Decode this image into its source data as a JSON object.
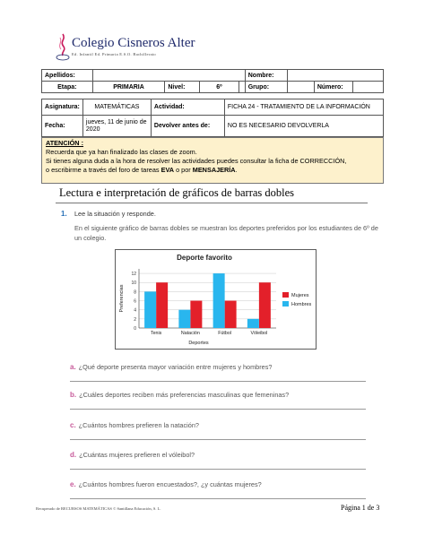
{
  "header": {
    "school_name": "Colegio Cisneros Alter",
    "school_levels": "Ed. Infantil   Ed. Primaria   E.S.O.   Bachillerato"
  },
  "info_table": {
    "row1": {
      "apellidos_label": "Apellidos:",
      "apellidos_value": "",
      "nombre_label": "Nombre:",
      "nombre_value": ""
    },
    "row2": {
      "etapa_label": "Etapa:",
      "etapa_value": "PRIMARIA",
      "nivel_label": "Nivel:",
      "nivel_value": "6º",
      "grupo_label": "Grupo:",
      "grupo_value": "",
      "numero_label": "Número:",
      "numero_value": ""
    },
    "row3": {
      "asignatura_label": "Asignatura:",
      "asignatura_value": "MATEMÁTICAS",
      "actividad_label": "Actividad:",
      "actividad_value": "FICHA 24 - TRATAMIENTO DE LA INFORMACIÓN"
    },
    "row4": {
      "fecha_label": "Fecha:",
      "fecha_value": "jueves, 11 de junio de 2020",
      "devolver_label": "Devolver antes de:",
      "devolver_value": "NO ES NECESARIO DEVOLVERLA"
    }
  },
  "attention": {
    "heading": "ATENCIÓN :",
    "line1": "Recuerda que ya han finalizado las clases de zoom.",
    "line2": "Si tienes alguna duda a la hora de resolver las actividades puedes consultar la ficha de CORRECCIÓN,",
    "line3_a": "o escribirme a través del foro de tareas ",
    "line3_b": "EVA",
    "line3_c": " o por ",
    "line3_d": "MENSAJERÍA",
    "line3_e": "."
  },
  "section_title": "Lectura e interpretación de gráficos de barras dobles",
  "question1": {
    "number": "1.",
    "instruction": "Lee la situación y responde.",
    "intro": "En el siguiente gráfico de barras dobles se muestran los deportes preferidos por los estudiantes de 6º de un colegio."
  },
  "chart_data": {
    "type": "bar",
    "title": "Deporte favorito",
    "xlabel": "Deportes",
    "ylabel": "Preferencias",
    "categories": [
      "Tenis",
      "Natación",
      "Fútbol",
      "Vóleibol"
    ],
    "series": [
      {
        "name": "Mujeres",
        "values": [
          10,
          6,
          6,
          10
        ],
        "color": "#e3202a"
      },
      {
        "name": "Hombres",
        "values": [
          8,
          4,
          12,
          2
        ],
        "color": "#29b6ee"
      }
    ],
    "yticks": [
      0,
      2,
      4,
      6,
      8,
      10,
      12
    ],
    "ylim": [
      0,
      13
    ],
    "grid": true,
    "legend": "right"
  },
  "sub_questions": [
    {
      "letter": "a.",
      "text": "¿Qué deporte presenta mayor variación entre mujeres y hombres?"
    },
    {
      "letter": "b.",
      "text": "¿Cuáles deportes reciben más preferencias masculinas que femeninas?"
    },
    {
      "letter": "c.",
      "text": "¿Cuántos hombres prefieren la natación?"
    },
    {
      "letter": "d.",
      "text": "¿Cuántas mujeres prefieren el vóleibol?"
    },
    {
      "letter": "e.",
      "text": "¿Cuántos hombres fueron encuestados?, ¿y cuántas mujeres?"
    }
  ],
  "footer": {
    "left": "Recuperado de RECURSOS MATEMÁTICAS © Santillana Educación, S. L.",
    "right": "Página 1 de 3"
  },
  "colors": {
    "accent_blue": "#2a72b8",
    "accent_pink": "#c75a9a",
    "attention_bg": "#fdf1cc"
  }
}
